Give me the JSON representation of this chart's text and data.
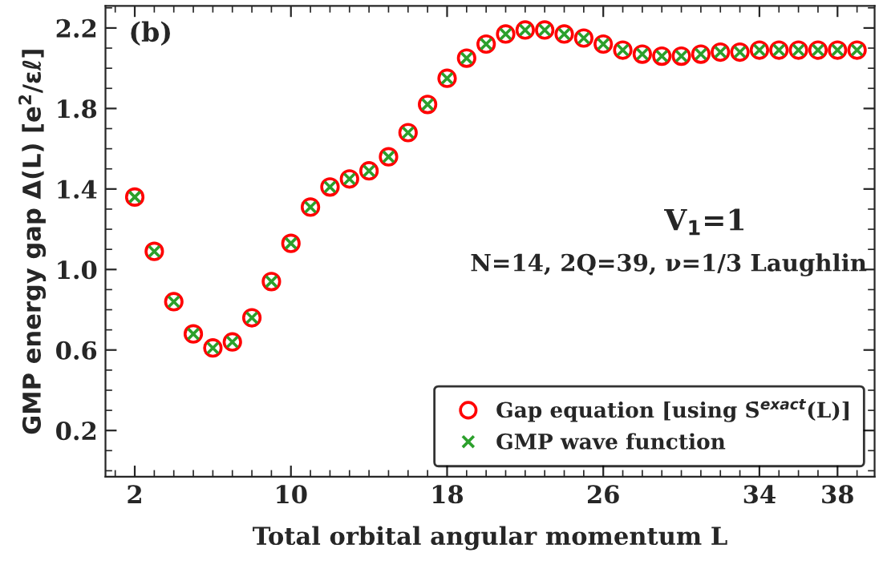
{
  "chart_data": {
    "type": "scatter",
    "xlabel": "Total orbital angular momentum L",
    "ylabel": "GMP energy gap Δ(L) [e$^{2}$/εℓ]",
    "x": [
      2,
      3,
      4,
      5,
      6,
      7,
      8,
      9,
      10,
      11,
      12,
      13,
      14,
      15,
      16,
      17,
      18,
      19,
      20,
      21,
      22,
      23,
      24,
      25,
      26,
      27,
      28,
      29,
      30,
      31,
      32,
      33,
      34,
      35,
      36,
      37,
      38,
      39
    ],
    "series": [
      {
        "name": "Gap equation [using S̄$^{exact}$(L)]",
        "color": "#ff0000",
        "marker": "circle",
        "values": [
          1.36,
          1.09,
          0.84,
          0.68,
          0.61,
          0.64,
          0.76,
          0.94,
          1.13,
          1.31,
          1.41,
          1.45,
          1.49,
          1.56,
          1.68,
          1.82,
          1.95,
          2.05,
          2.12,
          2.17,
          2.19,
          2.19,
          2.17,
          2.15,
          2.12,
          2.09,
          2.07,
          2.06,
          2.06,
          2.07,
          2.08,
          2.08,
          2.09,
          2.09,
          2.09,
          2.09,
          2.09,
          2.09
        ]
      },
      {
        "name": "GMP wave function",
        "color": "#2ca02c",
        "marker": "cross",
        "values": [
          1.36,
          1.09,
          0.84,
          0.68,
          0.61,
          0.64,
          0.76,
          0.94,
          1.13,
          1.31,
          1.41,
          1.45,
          1.49,
          1.56,
          1.68,
          1.82,
          1.95,
          2.05,
          2.12,
          2.17,
          2.19,
          2.19,
          2.17,
          2.15,
          2.12,
          2.09,
          2.07,
          2.06,
          2.06,
          2.07,
          2.08,
          2.08,
          2.09,
          2.09,
          2.09,
          2.09,
          2.09,
          2.09
        ]
      }
    ],
    "xlim": [
      0.5,
      39.9
    ],
    "ylim": [
      -0.03,
      2.31
    ],
    "xticks": [
      2,
      10,
      18,
      26,
      34,
      38
    ],
    "yticks": [
      0.2,
      0.6,
      {
        "value": 1.0,
        "label": "1.0"
      },
      1.4,
      1.8,
      2.2
    ],
    "annotations": [
      "(b)",
      "V$_{1}$=1",
      "N=14, 2Q=39, ν=1/3 Laughlin"
    ],
    "legend": "lower right",
    "grid": false
  }
}
